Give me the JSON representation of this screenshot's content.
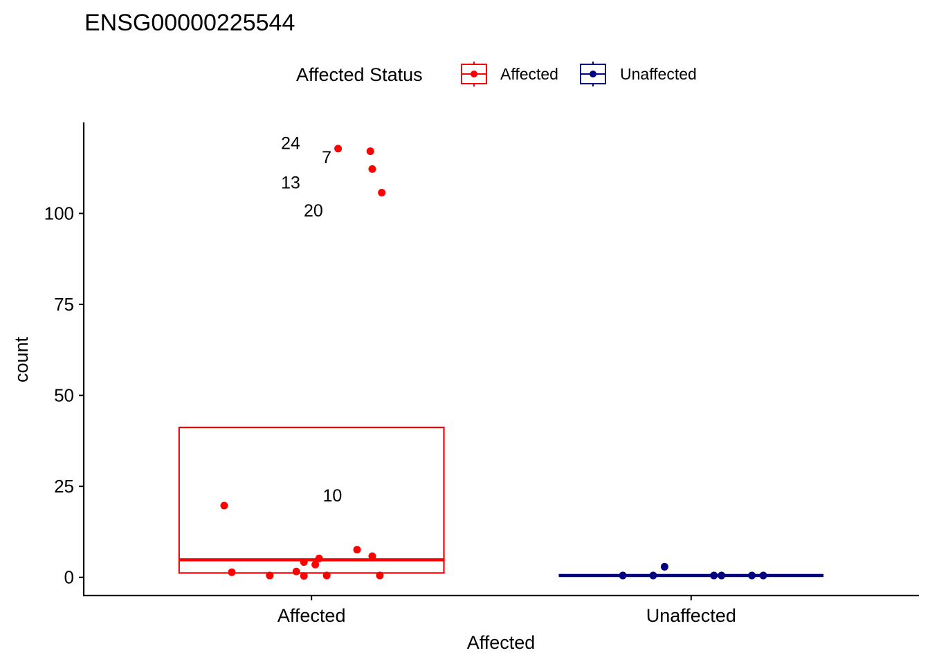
{
  "chart_data": {
    "type": "boxplot",
    "title": "ENSG00000225544",
    "xlabel": "Affected",
    "ylabel": "count",
    "ylim": [
      -5,
      125
    ],
    "yticks": [
      0,
      25,
      50,
      75,
      100
    ],
    "categories": [
      "Affected",
      "Unaffected"
    ],
    "legend": {
      "title": "Affected Status",
      "position": "top",
      "entries": [
        {
          "name": "Affected",
          "color": "#ff0000"
        },
        {
          "name": "Unaffected",
          "color": "#000080"
        }
      ]
    },
    "boxes": [
      {
        "category": "Affected",
        "q1": 1.2,
        "median": 4.8,
        "q3": 41.2,
        "color": "#ff0000"
      },
      {
        "category": "Unaffected",
        "q1": 0.5,
        "median": 0.5,
        "q3": 0.5,
        "color": "#000080"
      }
    ],
    "points": [
      {
        "category": "Affected",
        "jitter": -0.23,
        "y": 19.7
      },
      {
        "category": "Affected",
        "jitter": -0.21,
        "y": 1.4
      },
      {
        "category": "Affected",
        "jitter": -0.11,
        "y": 0.5
      },
      {
        "category": "Affected",
        "jitter": -0.04,
        "y": 1.6
      },
      {
        "category": "Affected",
        "jitter": -0.02,
        "y": 4.2
      },
      {
        "category": "Affected",
        "jitter": -0.02,
        "y": 0.4
      },
      {
        "category": "Affected",
        "jitter": 0.01,
        "y": 3.5
      },
      {
        "category": "Affected",
        "jitter": 0.02,
        "y": 5.2
      },
      {
        "category": "Affected",
        "jitter": 0.04,
        "y": 0.5
      },
      {
        "category": "Affected",
        "jitter": 0.07,
        "y": 117.8
      },
      {
        "category": "Affected",
        "jitter": 0.12,
        "y": 7.6
      },
      {
        "category": "Affected",
        "jitter": 0.155,
        "y": 117.1
      },
      {
        "category": "Affected",
        "jitter": 0.16,
        "y": 112.2
      },
      {
        "category": "Affected",
        "jitter": 0.16,
        "y": 5.8
      },
      {
        "category": "Affected",
        "jitter": 0.18,
        "y": 0.5
      },
      {
        "category": "Affected",
        "jitter": 0.185,
        "y": 105.7
      },
      {
        "category": "Unaffected",
        "jitter": -0.18,
        "y": 0.5
      },
      {
        "category": "Unaffected",
        "jitter": -0.1,
        "y": 0.5
      },
      {
        "category": "Unaffected",
        "jitter": -0.07,
        "y": 2.9
      },
      {
        "category": "Unaffected",
        "jitter": 0.06,
        "y": 0.5
      },
      {
        "category": "Unaffected",
        "jitter": 0.08,
        "y": 0.5
      },
      {
        "category": "Unaffected",
        "jitter": 0.16,
        "y": 0.5
      },
      {
        "category": "Unaffected",
        "jitter": 0.19,
        "y": 0.5
      }
    ],
    "annotations": [
      {
        "text": "24",
        "category": "Affected",
        "offset": -0.055,
        "y": 119.4
      },
      {
        "text": "7",
        "category": "Affected",
        "offset": 0.04,
        "y": 115.5
      },
      {
        "text": "13",
        "category": "Affected",
        "offset": -0.055,
        "y": 108.6
      },
      {
        "text": "20",
        "category": "Affected",
        "offset": 0.005,
        "y": 100.9
      },
      {
        "text": "10",
        "category": "Affected",
        "offset": 0.055,
        "y": 22.6
      }
    ]
  }
}
